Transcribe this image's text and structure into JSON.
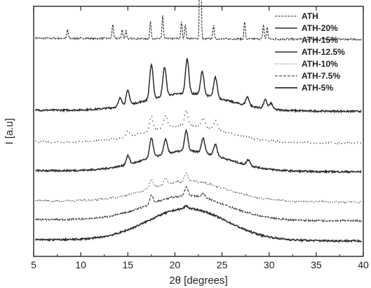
{
  "chart_data": {
    "type": "line",
    "title": "",
    "xlabel": "2θ [degrees]",
    "ylabel": "I [a.u]",
    "xlim": [
      5,
      40
    ],
    "x_ticks": [
      "5",
      "10",
      "15",
      "20",
      "25",
      "30",
      "35",
      "40"
    ],
    "y_ticks_shown": false,
    "grid": false,
    "legend_placement": "top-right",
    "line_color": "#2b2b2b",
    "y_axis": "arbitrary intensity units, patterns stacked with vertical offsets",
    "series": [
      {
        "name": "ATH",
        "offset": 0.7,
        "baseline": 0.0,
        "peaks": [
          [
            8.6,
            0.03
          ],
          [
            13.4,
            0.05
          ],
          [
            14.4,
            0.03
          ],
          [
            14.8,
            0.03
          ],
          [
            17.4,
            0.06
          ],
          [
            18.7,
            0.08
          ],
          [
            20.7,
            0.06
          ],
          [
            21.1,
            0.05
          ],
          [
            22.7,
            0.6
          ],
          [
            24.1,
            0.05
          ],
          [
            27.4,
            0.06
          ],
          [
            29.4,
            0.05
          ],
          [
            29.8,
            0.04
          ]
        ]
      },
      {
        "name": "ATH-20%",
        "offset": 0.45,
        "baseline": 0.06,
        "peaks": [
          [
            14.2,
            0.03
          ],
          [
            15.0,
            0.05
          ],
          [
            17.5,
            0.12
          ],
          [
            18.9,
            0.1
          ],
          [
            21.3,
            0.12
          ],
          [
            22.9,
            0.08
          ],
          [
            24.3,
            0.07
          ],
          [
            27.7,
            0.03
          ],
          [
            29.6,
            0.03
          ],
          [
            30.2,
            0.02
          ]
        ]
      },
      {
        "name": "ATH-15%",
        "offset": 0.34,
        "baseline": 0.06,
        "peaks": [
          [
            15.0,
            0.02
          ],
          [
            17.5,
            0.05
          ],
          [
            19.0,
            0.04
          ],
          [
            21.2,
            0.05
          ],
          [
            23.0,
            0.03
          ],
          [
            24.3,
            0.03
          ]
        ]
      },
      {
        "name": "ATH-12.5%",
        "offset": 0.24,
        "baseline": 0.07,
        "peaks": [
          [
            15.0,
            0.03
          ],
          [
            17.5,
            0.07
          ],
          [
            19.0,
            0.05
          ],
          [
            21.2,
            0.07
          ],
          [
            23.0,
            0.05
          ],
          [
            24.3,
            0.04
          ],
          [
            27.8,
            0.02
          ]
        ]
      },
      {
        "name": "ATH-10%",
        "offset": 0.135,
        "baseline": 0.07,
        "peaks": [
          [
            17.5,
            0.03
          ],
          [
            19.0,
            0.02
          ],
          [
            21.2,
            0.03
          ]
        ]
      },
      {
        "name": "ATH-7.5%",
        "offset": 0.07,
        "baseline": 0.085,
        "peaks": [
          [
            17.5,
            0.03
          ],
          [
            21.2,
            0.03
          ],
          [
            23.0,
            0.015
          ]
        ]
      },
      {
        "name": "ATH-5%",
        "offset": 0.0,
        "baseline": 0.11,
        "peaks": [
          [
            21.2,
            0.01
          ]
        ]
      }
    ],
    "background_hump_center": 21.3,
    "legend": [
      "ATH",
      "ATH-20%",
      "ATH-15%",
      "ATH-12.5%",
      "ATH-10%",
      "ATH-7.5%",
      "ATH-5%"
    ]
  }
}
